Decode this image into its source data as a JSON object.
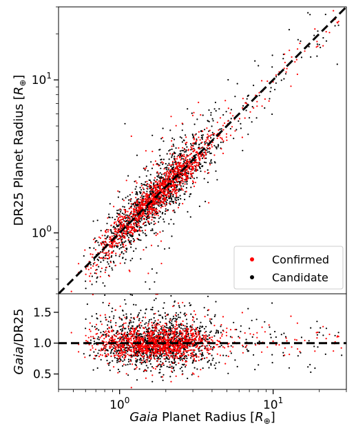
{
  "chart_data": [
    {
      "type": "scatter",
      "panel": "top",
      "xscale": "log",
      "yscale": "log",
      "xlim": [
        0.4,
        30
      ],
      "ylim": [
        0.4,
        30
      ],
      "xlabel": "",
      "ylabel": "DR25 Planet Radius [R⊕]",
      "ylabel_main": "DR25 Planet Radius [",
      "ylabel_R": "R",
      "ylabel_sub": "⊕",
      "ylabel_close": "]",
      "yticks": [
        {
          "value": 1,
          "base": "10",
          "exp": "0"
        },
        {
          "value": 10,
          "base": "10",
          "exp": "1"
        }
      ],
      "reference_line": {
        "style": "dashed",
        "color": "#000000",
        "relation": "y = x"
      },
      "series": [
        {
          "name": "Confirmed",
          "color": "#ff0000"
        },
        {
          "name": "Candidate",
          "color": "#000000"
        }
      ],
      "legend_position": "bottom-right",
      "note": "dense cloud of several thousand points clustered around y=x, densest near 1.5–3 R⊕"
    },
    {
      "type": "scatter",
      "panel": "bottom",
      "xscale": "log",
      "yscale": "linear",
      "xlim": [
        0.4,
        30
      ],
      "ylim": [
        0.25,
        1.8
      ],
      "xlabel": "Gaia Planet Radius [R⊕]",
      "xlabel_italic": "Gaia",
      "xlabel_main": " Planet Radius [",
      "xlabel_R": "R",
      "xlabel_sub": "⊕",
      "xlabel_close": "]",
      "ylabel": "Gaia/DR25",
      "ylabel_italic": "Gaia",
      "ylabel_rest": "/DR25",
      "xticks": [
        {
          "value": 1,
          "base": "10",
          "exp": "0"
        },
        {
          "value": 10,
          "base": "10",
          "exp": "1"
        }
      ],
      "yticks": [
        {
          "value": 0.5,
          "label": "0.5"
        },
        {
          "value": 1.0,
          "label": "1.0"
        },
        {
          "value": 1.5,
          "label": "1.5"
        }
      ],
      "reference_line": {
        "style": "dashed",
        "color": "#000000",
        "relation": "y = 1.0"
      },
      "series": [
        {
          "name": "Confirmed",
          "color": "#ff0000"
        },
        {
          "name": "Candidate",
          "color": "#000000"
        }
      ]
    }
  ]
}
